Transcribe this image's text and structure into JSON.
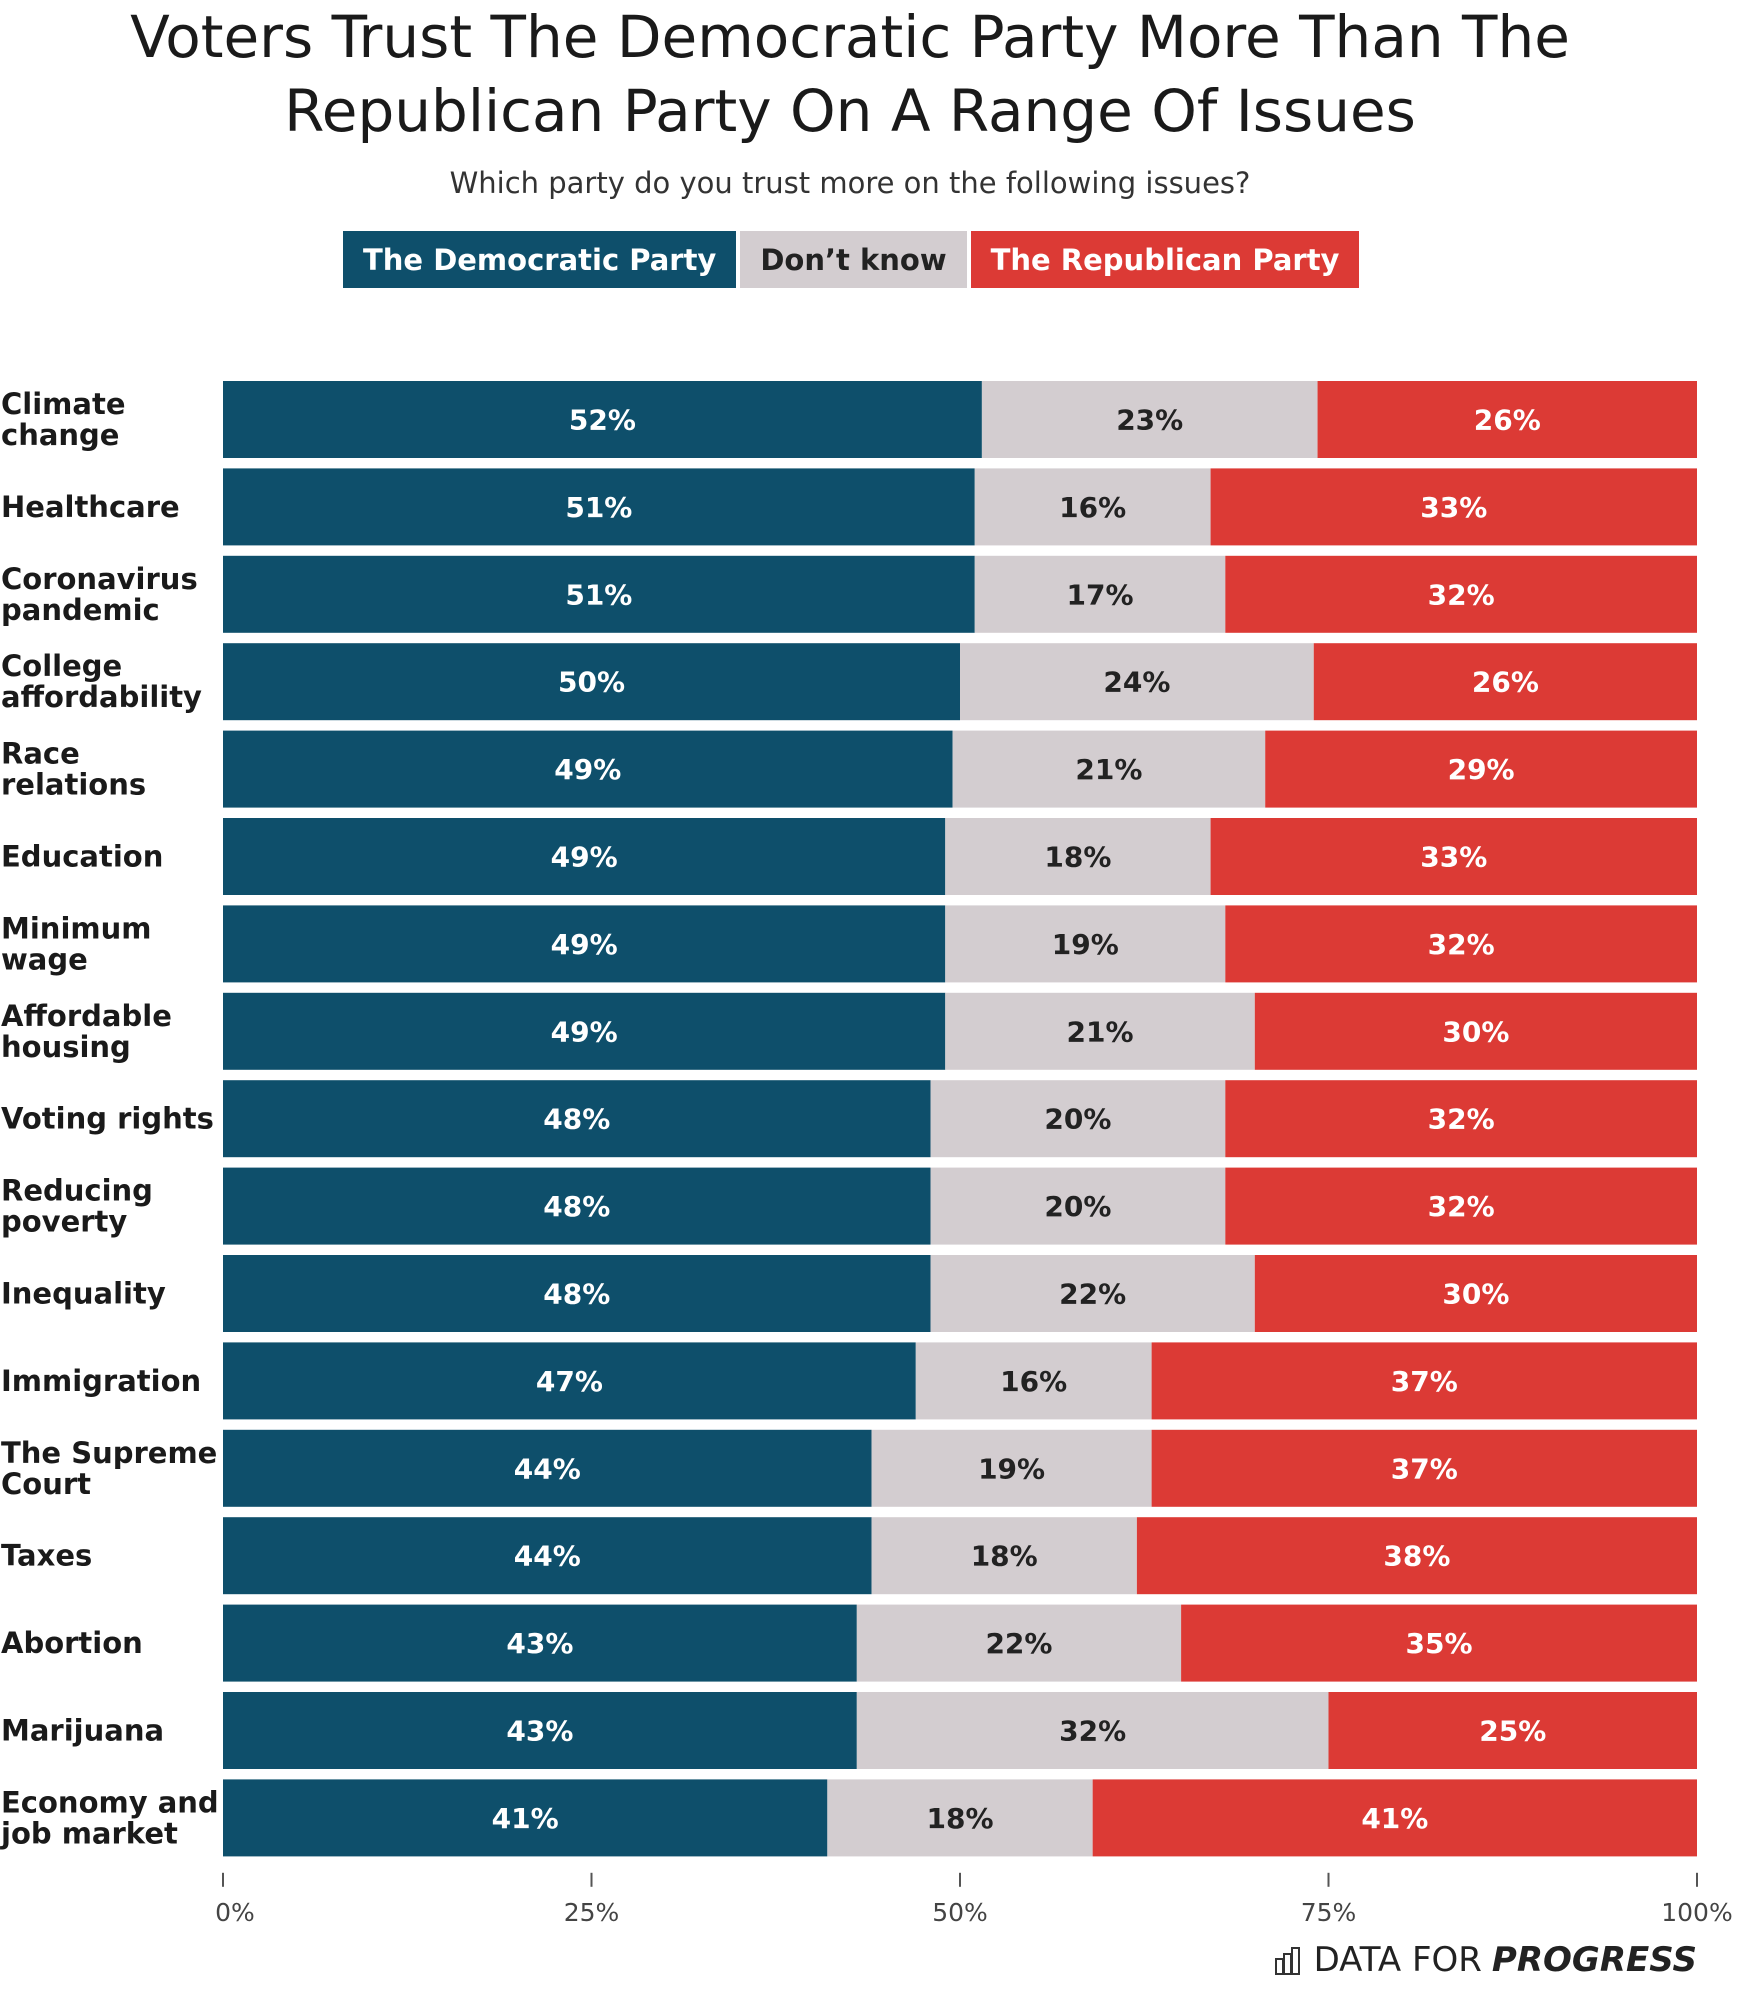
{
  "chart_data": {
    "type": "bar",
    "orientation": "horizontal",
    "stacked": true,
    "title": "Voters Trust The Democratic Party More Than The Republican Party On A Range Of Issues",
    "subtitle": "Which party do you trust more on the following issues?",
    "categories": [
      "Climate change",
      "Healthcare",
      "Coronavirus pandemic",
      "College affordability",
      "Race relations",
      "Education",
      "Minimum wage",
      "Affordable housing",
      "Voting rights",
      "Reducing poverty",
      "Inequality",
      "Immigration",
      "The Supreme Court",
      "Taxes",
      "Abortion",
      "Marijuana",
      "Economy and job market"
    ],
    "series": [
      {
        "name": "The Democratic Party",
        "color": "#0e4f6b",
        "values": [
          52,
          51,
          51,
          50,
          49,
          49,
          49,
          49,
          48,
          48,
          48,
          47,
          44,
          44,
          43,
          43,
          41
        ]
      },
      {
        "name": "Don’t know",
        "color": "#d3cdd0",
        "values": [
          23,
          16,
          17,
          24,
          21,
          18,
          19,
          21,
          20,
          20,
          22,
          16,
          19,
          18,
          22,
          32,
          18
        ]
      },
      {
        "name": "The Republican Party",
        "color": "#dc3a35",
        "values": [
          26,
          33,
          32,
          26,
          29,
          33,
          32,
          30,
          32,
          32,
          30,
          37,
          37,
          38,
          35,
          25,
          41
        ]
      }
    ],
    "xlim": [
      0,
      100
    ],
    "xticks": [
      "0%",
      "25%",
      "50%",
      "75%",
      "100%"
    ],
    "legend_position": "top",
    "grid": false
  },
  "branding": {
    "logo_light": "DATA FOR",
    "logo_bold": "PROGRESS"
  }
}
